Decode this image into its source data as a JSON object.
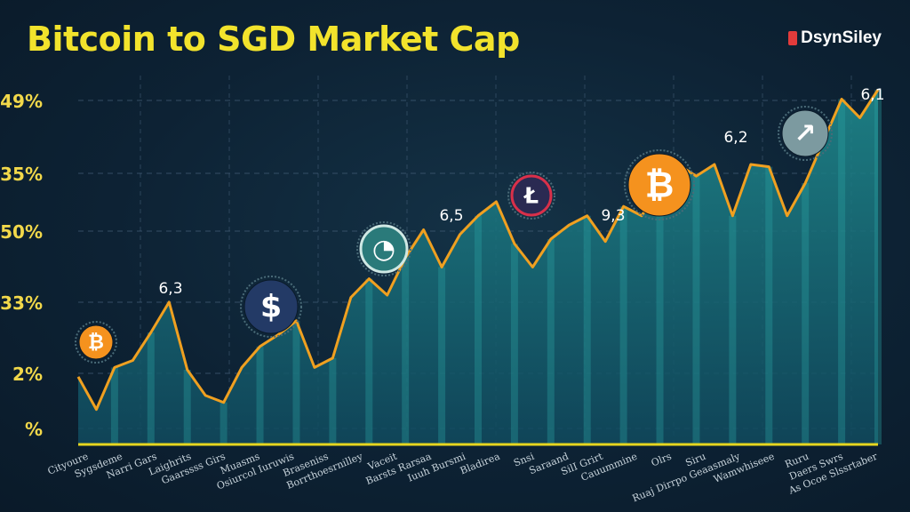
{
  "header": {
    "title": "Bitcoin to SGD Market Cap",
    "brand": "DsynSiley"
  },
  "colors": {
    "background": "#0d2234",
    "title": "#f2e32c",
    "line": "#f0a020",
    "area": "#1c7f86",
    "axis": "#e6d61f",
    "ytick": "#f2d84a",
    "grid": "#46607a"
  },
  "icons": [
    {
      "name": "bitcoin-coin-icon",
      "color": "#f5921e"
    },
    {
      "name": "dollar-coin-icon",
      "color": "#233a66"
    },
    {
      "name": "lock-coin-icon",
      "color": "#2a7a7a"
    },
    {
      "name": "litecoin-coin-icon",
      "color": "#2a2a52"
    },
    {
      "name": "bitcoin-coin-large-icon",
      "color": "#f5921e"
    },
    {
      "name": "arrow-coin-icon",
      "color": "#7c9aa0"
    }
  ],
  "chart_data": {
    "type": "area",
    "title": "Bitcoin to SGD Market Cap",
    "y_tick_labels": [
      "49%",
      "35%",
      "50%",
      "33%",
      "2%",
      "%"
    ],
    "x_tick_labels": [
      "Cityoure",
      "Sygsdeme",
      "Narri Gars",
      "Laighrits",
      "Gaarssss Girs",
      "Muasms",
      "Osiurcol Iuruwis",
      "Braseniss",
      "Borrthoesrnilley",
      "Vaceit",
      "Barsts Rarsaa",
      "Iuuh Bursmi",
      "Bladirea",
      "Snsi",
      "Saraand",
      "SilI Grirt",
      "Cauummine",
      "Olrs",
      "Siru",
      "Ruaj Dirrpo Geaasmaly",
      "Wamwhiseee",
      "Ruru",
      "Daers Swrs",
      "As Ocoe Slssrtaber"
    ],
    "annotations": [
      "6,3",
      "6,5",
      "9,3",
      "6,2",
      "6,1"
    ],
    "x": [
      0,
      1,
      2,
      3,
      4,
      5,
      6,
      7,
      8,
      9,
      10,
      11,
      12,
      13,
      14,
      15,
      16,
      17,
      18,
      19,
      20,
      21,
      22,
      23,
      24,
      25,
      26,
      27,
      28,
      29,
      30,
      31,
      32,
      33,
      34,
      35,
      36,
      37,
      38,
      39,
      40,
      41,
      42,
      43,
      44
    ],
    "values": [
      1.45,
      0.75,
      1.65,
      1.8,
      2.4,
      3.05,
      1.6,
      1.05,
      0.9,
      1.65,
      2.1,
      2.35,
      2.65,
      1.65,
      1.85,
      3.15,
      3.55,
      3.2,
      4.0,
      4.6,
      3.8,
      4.5,
      4.9,
      5.2,
      4.3,
      3.8,
      4.4,
      4.7,
      4.9,
      4.35,
      5.1,
      4.9,
      5.5,
      6.0,
      5.75,
      6.0,
      4.9,
      6.0,
      5.95,
      4.9,
      5.6,
      6.5,
      7.4,
      7.0,
      7.6
    ],
    "ylim": [
      0,
      8
    ],
    "grid": true
  }
}
